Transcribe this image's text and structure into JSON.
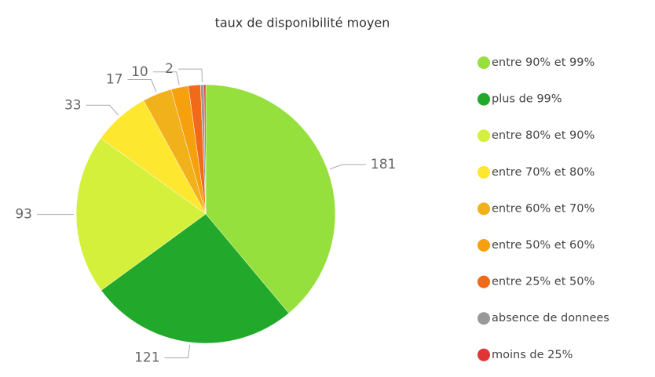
{
  "chart_data": {
    "type": "pie",
    "title": "taux de disponibilité moyen",
    "categories": [
      "entre 90% et 99%",
      "plus de 99%",
      "entre 80% et 90%",
      "entre 70% et 80%",
      "entre 60% et 70%",
      "entre 50% et 60%",
      "entre 25% et 50%",
      "absence de donnees",
      "moins de 25%"
    ],
    "values": [
      181,
      121,
      93,
      33,
      17,
      10,
      7,
      2,
      1
    ],
    "value_labels": [
      "181",
      "121",
      "93",
      "33",
      "17",
      "10",
      null,
      "2",
      null
    ],
    "colors": [
      "#95e03c",
      "#22a82a",
      "#d4f03a",
      "#fde72f",
      "#f1b11a",
      "#f7a00e",
      "#f06a1a",
      "#999999",
      "#e03535"
    ],
    "legend": "right"
  }
}
